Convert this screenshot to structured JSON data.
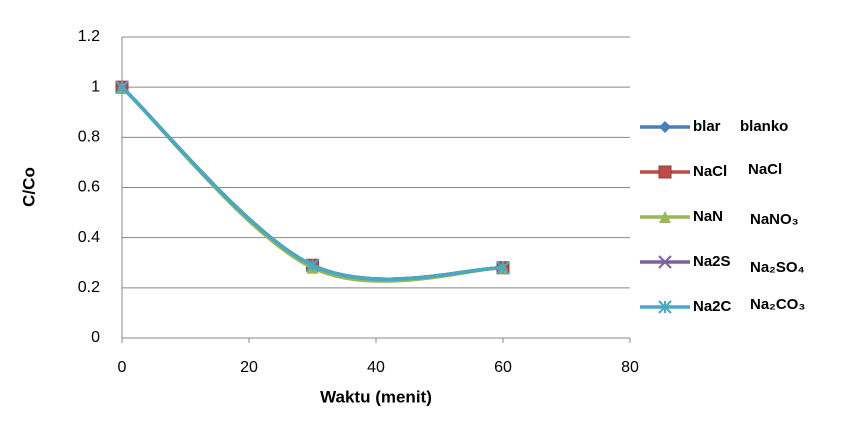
{
  "chart_data": {
    "type": "line",
    "smooth": true,
    "x": [
      0,
      30,
      60
    ],
    "series": [
      {
        "name": "blar",
        "color": "#4a7ebb",
        "marker": "diamond",
        "values": [
          1,
          0.29,
          0.28
        ]
      },
      {
        "name": "NaCl",
        "color": "#be4b48",
        "marker": "square",
        "values": [
          1,
          0.29,
          0.28
        ]
      },
      {
        "name": "NaN",
        "color": "#98b954",
        "marker": "triangle",
        "values": [
          1,
          0.28,
          0.28
        ]
      },
      {
        "name": "Na2S",
        "color": "#7d60a0",
        "marker": "x",
        "values": [
          1,
          0.29,
          0.28
        ]
      },
      {
        "name": "Na2C",
        "color": "#46aac5",
        "marker": "asterisk",
        "values": [
          1,
          0.29,
          0.28
        ]
      }
    ],
    "annotations": [
      "blanko",
      "NaCl",
      "NaNO₃",
      "Na₂SO₄",
      "Na₂CO₃"
    ],
    "xlabel": "Waktu (menit)",
    "ylabel": "C/Co",
    "xlim": [
      0,
      80
    ],
    "xticks": [
      0,
      20,
      40,
      60,
      80
    ],
    "ylim": [
      0,
      1.2
    ],
    "yticks": [
      0,
      0.2,
      0.4,
      0.6,
      0.8,
      1,
      1.2
    ],
    "grid": true,
    "legend": "right"
  }
}
